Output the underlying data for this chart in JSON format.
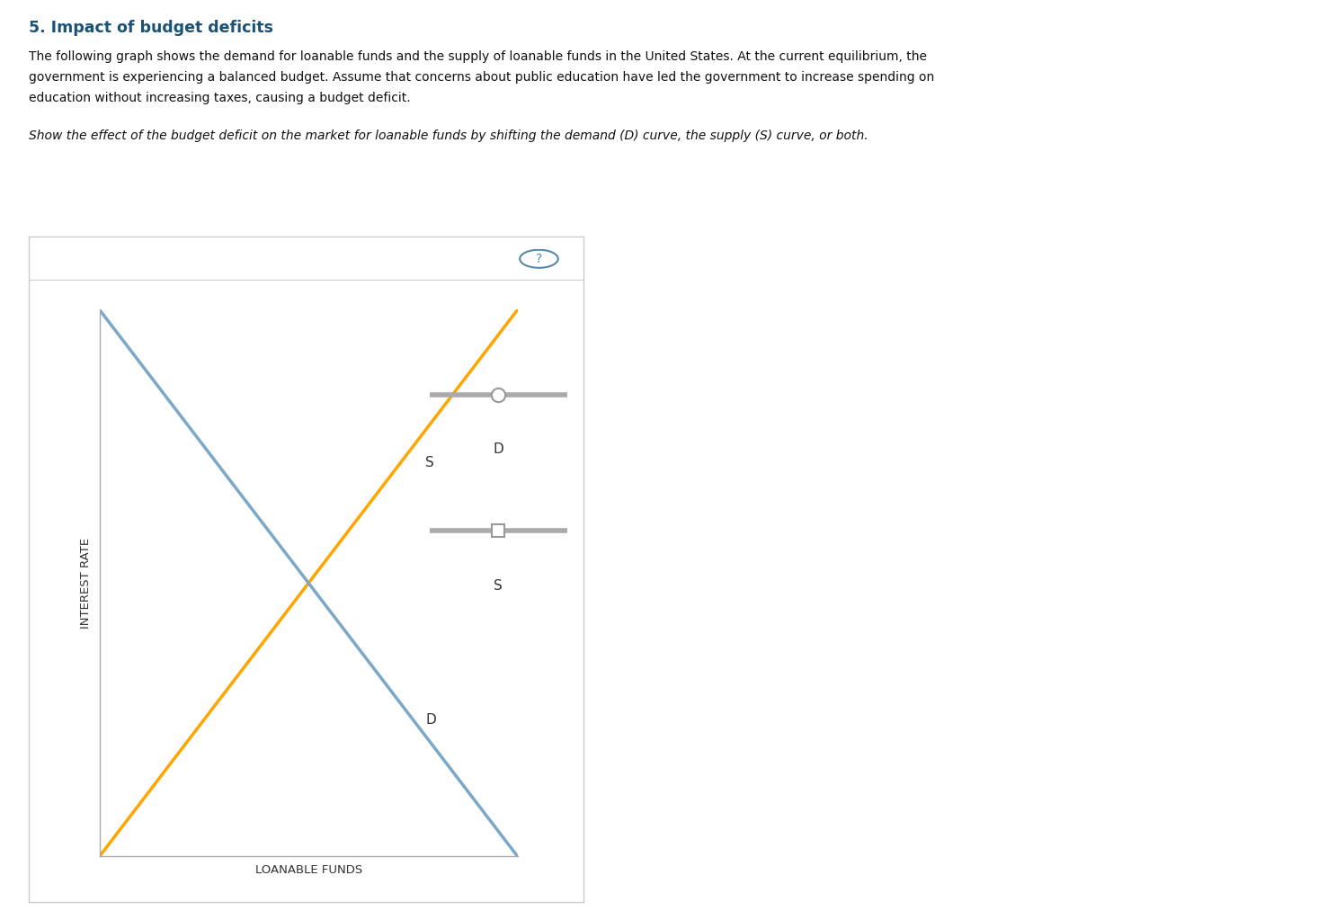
{
  "title": "5. Impact of budget deficits",
  "line1": "The following graph shows the demand for loanable funds and the supply of loanable funds in the United States. At the current equilibrium, the",
  "line2": "government is experiencing a balanced budget. Assume that concerns about public education have led the government to increase spending on",
  "line3": "education without increasing taxes, causing a budget deficit.",
  "line4": "Show the effect of the budget deficit on the market for loanable funds by shifting the demand (D) curve, the supply (S) curve, or both.",
  "ylabel": "INTEREST RATE",
  "xlabel": "LOANABLE FUNDS",
  "supply_color": "#FFA500",
  "demand_color": "#7BA7C9",
  "supply_label": "S",
  "demand_label": "D",
  "background_color": "#FFFFFF",
  "box_border_color": "#CCCCCC",
  "axis_color": "#AAAAAA",
  "legend_line_color": "#AAAAAA",
  "legend_marker_edge_color": "#999999",
  "text_color": "#333333",
  "title_color": "#1a5276",
  "qmark_color": "#5588AA"
}
